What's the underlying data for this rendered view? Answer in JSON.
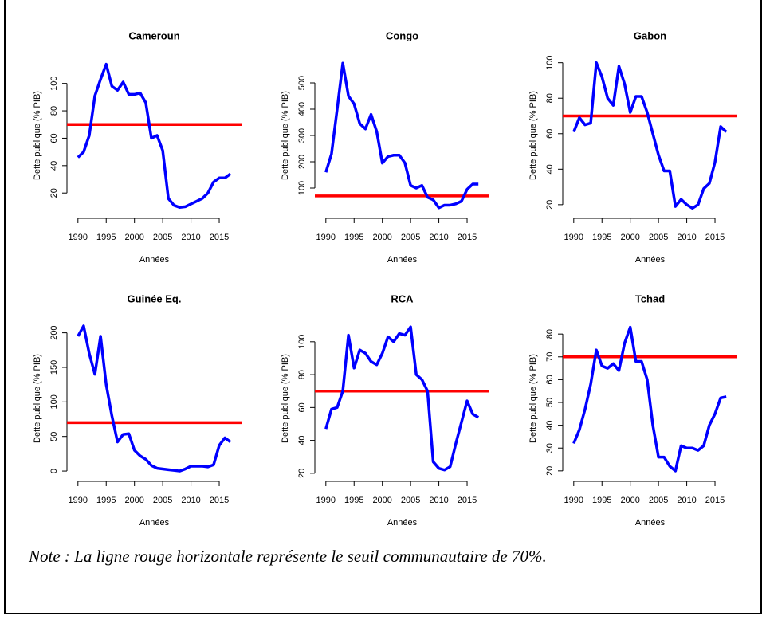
{
  "chart_data": [
    {
      "type": "line",
      "title": "Cameroun",
      "xlabel": "Années",
      "ylabel": "Dette publique  (% PIB)",
      "x": [
        1990,
        1991,
        1992,
        1993,
        1994,
        1995,
        1996,
        1997,
        1998,
        1999,
        2000,
        2001,
        2002,
        2003,
        2004,
        2005,
        2006,
        2007,
        2008,
        2009,
        2010,
        2011,
        2012,
        2013,
        2014,
        2015,
        2016,
        2017
      ],
      "series": [
        {
          "color": "#0000ff",
          "values": [
            46,
            50,
            62,
            91,
            103,
            114,
            98,
            95,
            101,
            92,
            92,
            93,
            86,
            60,
            62,
            51,
            16,
            11,
            9.5,
            10,
            12,
            14,
            16,
            20,
            28,
            31,
            31,
            34
          ]
        }
      ],
      "hline": 70,
      "hline_color": "#ff0000",
      "xlim": [
        1988.9,
        2018.1
      ],
      "xticks": [
        1990,
        1995,
        2000,
        2005,
        2010,
        2015
      ],
      "ylim": [
        5,
        119
      ],
      "yticks": [
        20,
        40,
        60,
        80,
        100
      ]
    },
    {
      "type": "line",
      "title": "Congo",
      "xlabel": "Années",
      "ylabel": "Dette publique  (% PIB)",
      "x": [
        1990,
        1991,
        1992,
        1993,
        1994,
        1995,
        1996,
        1997,
        1998,
        1999,
        2000,
        2001,
        2002,
        2003,
        2004,
        2005,
        2006,
        2007,
        2008,
        2009,
        2010,
        2011,
        2012,
        2013,
        2014,
        2015,
        2016,
        2017
      ],
      "series": [
        {
          "color": "#0000ff",
          "values": [
            160,
            230,
            400,
            575,
            450,
            420,
            345,
            325,
            380,
            315,
            195,
            220,
            225,
            225,
            195,
            110,
            100,
            110,
            65,
            55,
            25,
            35,
            35,
            40,
            50,
            95,
            115,
            115
          ]
        }
      ],
      "hline": 70,
      "hline_color": "#ff0000",
      "xlim": [
        1988.9,
        2018.1
      ],
      "xticks": [
        1990,
        1995,
        2000,
        2005,
        2010,
        2015
      ],
      "ylim": [
        3,
        597
      ],
      "yticks": [
        100,
        200,
        300,
        400,
        500
      ]
    },
    {
      "type": "line",
      "title": "Gabon",
      "xlabel": "Années",
      "ylabel": "Dette publique  (% PIB)",
      "x": [
        1990,
        1991,
        1992,
        1993,
        1994,
        1995,
        1996,
        1997,
        1998,
        1999,
        2000,
        2001,
        2002,
        2003,
        2004,
        2005,
        2006,
        2007,
        2008,
        2009,
        2010,
        2011,
        2012,
        2013,
        2014,
        2015,
        2016,
        2017
      ],
      "series": [
        {
          "color": "#0000ff",
          "values": [
            61,
            69,
            65,
            66,
            100,
            92,
            80,
            76,
            98,
            88,
            72,
            81,
            81,
            72,
            60,
            48,
            39,
            39,
            19,
            23,
            20,
            18,
            20,
            29,
            32,
            44,
            64,
            61
          ]
        }
      ],
      "hline": 70,
      "hline_color": "#ff0000",
      "xlim": [
        1988.9,
        2018.1
      ],
      "xticks": [
        1990,
        1995,
        2000,
        2005,
        2010,
        2015
      ],
      "ylim": [
        15,
        103
      ],
      "yticks": [
        20,
        40,
        60,
        80,
        100
      ]
    },
    {
      "type": "line",
      "title": "Guinée Eq.",
      "xlabel": "Années",
      "ylabel": "Dette publique  (% PIB)",
      "x": [
        1990,
        1991,
        1992,
        1993,
        1994,
        1995,
        1996,
        1997,
        1998,
        1999,
        2000,
        2001,
        2002,
        2003,
        2004,
        2005,
        2006,
        2007,
        2008,
        2009,
        2010,
        2011,
        2012,
        2013,
        2014,
        2015,
        2016,
        2017
      ],
      "series": [
        {
          "color": "#0000ff",
          "values": [
            195,
            210,
            170,
            140,
            195,
            125,
            80,
            42,
            53,
            54,
            30,
            22,
            17,
            8,
            4,
            3,
            2,
            1,
            0,
            3,
            7,
            7,
            7,
            6,
            9,
            37,
            48,
            42
          ]
        }
      ],
      "hline": 70,
      "hline_color": "#ff0000",
      "xlim": [
        1988.9,
        2018.1
      ],
      "xticks": [
        1990,
        1995,
        2000,
        2005,
        2010,
        2015
      ],
      "ylim": [
        -8,
        218
      ],
      "yticks": [
        0,
        50,
        100,
        150,
        200
      ]
    },
    {
      "type": "line",
      "title": "RCA",
      "xlabel": "Années",
      "ylabel": "Dette publique  (% PIB)",
      "x": [
        1990,
        1991,
        1992,
        1993,
        1994,
        1995,
        1996,
        1997,
        1998,
        1999,
        2000,
        2001,
        2002,
        2003,
        2004,
        2005,
        2006,
        2007,
        2008,
        2009,
        2010,
        2011,
        2012,
        2013,
        2014,
        2015,
        2016,
        2017
      ],
      "series": [
        {
          "color": "#0000ff",
          "values": [
            47,
            59,
            60,
            70,
            104,
            84,
            95,
            93,
            88,
            86,
            93,
            103,
            100,
            105,
            104,
            109,
            80,
            77,
            70,
            27,
            23,
            22,
            24,
            38,
            51,
            64,
            56,
            54
          ]
        }
      ],
      "hline": 70,
      "hline_color": "#ff0000",
      "xlim": [
        1988.9,
        2018.1
      ],
      "xticks": [
        1990,
        1995,
        2000,
        2005,
        2010,
        2015
      ],
      "ylim": [
        18,
        113
      ],
      "yticks": [
        20,
        40,
        60,
        80,
        100
      ]
    },
    {
      "type": "line",
      "title": "Tchad",
      "xlabel": "Années",
      "ylabel": "Dette publique  (% PIB)",
      "x": [
        1990,
        1991,
        1992,
        1993,
        1994,
        1995,
        1996,
        1997,
        1998,
        1999,
        2000,
        2001,
        2002,
        2003,
        2004,
        2005,
        2006,
        2007,
        2008,
        2009,
        2010,
        2011,
        2012,
        2013,
        2014,
        2015,
        2016,
        2017
      ],
      "series": [
        {
          "color": "#0000ff",
          "values": [
            32,
            38,
            47,
            58,
            73,
            66,
            65,
            67,
            64,
            76,
            83,
            68,
            68,
            60,
            40,
            26,
            26,
            22,
            20,
            31,
            30,
            30,
            29,
            31,
            40,
            45,
            52,
            52.5
          ]
        }
      ],
      "hline": 70,
      "hline_color": "#ff0000",
      "xlim": [
        1988.9,
        2018.1
      ],
      "xticks": [
        1990,
        1995,
        2000,
        2005,
        2010,
        2015
      ],
      "ylim": [
        17.5,
        86
      ],
      "yticks": [
        20,
        30,
        40,
        50,
        60,
        70,
        80
      ]
    }
  ],
  "note": "Note : La ligne rouge horizontale représente le seuil communautaire de 70%."
}
